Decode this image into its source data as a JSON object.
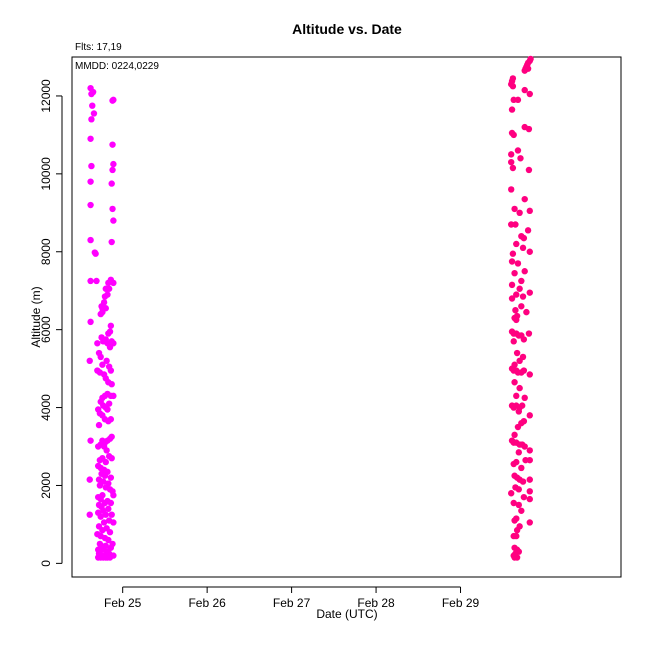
{
  "chart_data": {
    "type": "scatter",
    "title": "Altitude  vs. Date",
    "xlabel": "Date (UTC)",
    "ylabel": "Altitude (m)",
    "annotations": [
      "Flts: 17,19",
      "MMDD: 0224,0229"
    ],
    "x_ticks": [
      "Feb 25",
      "Feb 26",
      "Feb 27",
      "Feb 28",
      "Feb 29"
    ],
    "y_ticks": [
      0,
      2000,
      4000,
      6000,
      8000,
      10000,
      12000
    ],
    "xlim_days": [
      24.4,
      30.9
    ],
    "ylim": [
      -350,
      13000
    ],
    "grid": false,
    "legend": "none",
    "series": [
      {
        "color": "#ff00ff",
        "x_day_range": [
          24.6,
          24.9
        ],
        "points": [
          [
            24.62,
            12200
          ],
          [
            24.63,
            12050
          ],
          [
            24.65,
            12100
          ],
          [
            24.64,
            11750
          ],
          [
            24.66,
            11550
          ],
          [
            24.63,
            11400
          ],
          [
            24.62,
            10900
          ],
          [
            24.63,
            10200
          ],
          [
            24.62,
            9800
          ],
          [
            24.62,
            9200
          ],
          [
            24.62,
            8300
          ],
          [
            24.67,
            7980
          ],
          [
            24.68,
            7950
          ],
          [
            24.62,
            7250
          ],
          [
            24.69,
            7250
          ],
          [
            24.62,
            6200
          ],
          [
            24.61,
            5200
          ],
          [
            24.62,
            3150
          ],
          [
            24.61,
            2150
          ],
          [
            24.61,
            1250
          ],
          [
            24.89,
            11900
          ],
          [
            24.88,
            11880
          ],
          [
            24.88,
            10750
          ],
          [
            24.89,
            10250
          ],
          [
            24.88,
            10100
          ],
          [
            24.87,
            9750
          ],
          [
            24.88,
            9100
          ],
          [
            24.89,
            8800
          ],
          [
            24.87,
            8250
          ],
          [
            24.89,
            7200
          ],
          [
            24.86,
            7280
          ],
          [
            24.84,
            7050
          ],
          [
            24.83,
            7200
          ],
          [
            24.82,
            6900
          ],
          [
            24.8,
            7050
          ],
          [
            24.79,
            6850
          ],
          [
            24.78,
            6700
          ],
          [
            24.76,
            6550
          ],
          [
            24.75,
            6600
          ],
          [
            24.74,
            6400
          ],
          [
            24.76,
            6450
          ],
          [
            24.8,
            6550
          ],
          [
            24.86,
            6100
          ],
          [
            24.85,
            5950
          ],
          [
            24.83,
            5900
          ],
          [
            24.8,
            5750
          ],
          [
            24.82,
            5650
          ],
          [
            24.85,
            5550
          ],
          [
            24.87,
            5700
          ],
          [
            24.89,
            5650
          ],
          [
            24.75,
            5800
          ],
          [
            24.77,
            5700
          ],
          [
            24.7,
            5650
          ],
          [
            24.72,
            5400
          ],
          [
            24.74,
            5300
          ],
          [
            24.81,
            5200
          ],
          [
            24.84,
            5050
          ],
          [
            24.86,
            4950
          ],
          [
            24.76,
            5100
          ],
          [
            24.73,
            4900
          ],
          [
            24.7,
            4950
          ],
          [
            24.78,
            4850
          ],
          [
            24.8,
            4750
          ],
          [
            24.83,
            4650
          ],
          [
            24.87,
            4600
          ],
          [
            24.89,
            4300
          ],
          [
            24.86,
            4300
          ],
          [
            24.82,
            4350
          ],
          [
            24.79,
            4300
          ],
          [
            24.76,
            4250
          ],
          [
            24.74,
            4150
          ],
          [
            24.77,
            4050
          ],
          [
            24.8,
            4000
          ],
          [
            24.84,
            4100
          ],
          [
            24.82,
            3950
          ],
          [
            24.71,
            3950
          ],
          [
            24.73,
            3850
          ],
          [
            24.76,
            3800
          ],
          [
            24.79,
            3700
          ],
          [
            24.86,
            3700
          ],
          [
            24.83,
            3650
          ],
          [
            24.72,
            3550
          ],
          [
            24.85,
            3200
          ],
          [
            24.87,
            3250
          ],
          [
            24.82,
            3150
          ],
          [
            24.79,
            3100
          ],
          [
            24.76,
            3150
          ],
          [
            24.74,
            3050
          ],
          [
            24.71,
            3000
          ],
          [
            24.78,
            3000
          ],
          [
            24.81,
            2900
          ],
          [
            24.84,
            2750
          ],
          [
            24.87,
            2700
          ],
          [
            24.76,
            2700
          ],
          [
            24.73,
            2650
          ],
          [
            24.8,
            2600
          ],
          [
            24.71,
            2500
          ],
          [
            24.74,
            2450
          ],
          [
            24.78,
            2400
          ],
          [
            24.82,
            2350
          ],
          [
            24.75,
            2300
          ],
          [
            24.79,
            2250
          ],
          [
            24.86,
            2200
          ],
          [
            24.72,
            2150
          ],
          [
            24.77,
            2100
          ],
          [
            24.83,
            2050
          ],
          [
            24.73,
            2000
          ],
          [
            24.8,
            1950
          ],
          [
            24.85,
            1900
          ],
          [
            24.88,
            1850
          ],
          [
            24.89,
            1750
          ],
          [
            24.76,
            1750
          ],
          [
            24.71,
            1700
          ],
          [
            24.74,
            1650
          ],
          [
            24.82,
            1600
          ],
          [
            24.79,
            1550
          ],
          [
            24.86,
            1550
          ],
          [
            24.72,
            1500
          ],
          [
            24.75,
            1450
          ],
          [
            24.83,
            1400
          ],
          [
            24.77,
            1350
          ],
          [
            24.71,
            1300
          ],
          [
            24.8,
            1250
          ],
          [
            24.87,
            1250
          ],
          [
            24.74,
            1200
          ],
          [
            24.84,
            1100
          ],
          [
            24.89,
            1050
          ],
          [
            24.78,
            1050
          ],
          [
            24.72,
            950
          ],
          [
            24.81,
            900
          ],
          [
            24.76,
            850
          ],
          [
            24.85,
            800
          ],
          [
            24.7,
            750
          ],
          [
            24.74,
            700
          ],
          [
            24.79,
            650
          ],
          [
            24.83,
            600
          ],
          [
            24.88,
            500
          ],
          [
            24.73,
            500
          ],
          [
            24.75,
            450
          ],
          [
            24.8,
            450
          ],
          [
            24.86,
            400
          ],
          [
            24.71,
            350
          ],
          [
            24.77,
            350
          ],
          [
            24.82,
            300
          ],
          [
            24.72,
            250
          ],
          [
            24.75,
            200
          ],
          [
            24.79,
            200
          ],
          [
            24.84,
            250
          ],
          [
            24.89,
            200
          ],
          [
            24.71,
            150
          ],
          [
            24.74,
            150
          ],
          [
            24.77,
            150
          ],
          [
            24.8,
            150
          ],
          [
            24.82,
            150
          ],
          [
            24.85,
            150
          ]
        ]
      },
      {
        "color": "#ff0080",
        "x_day_range": [
          29.55,
          29.85
        ],
        "points": [
          [
            29.83,
            12950
          ],
          [
            29.82,
            12900
          ],
          [
            29.8,
            12850
          ],
          [
            29.79,
            12800
          ],
          [
            29.78,
            12750
          ],
          [
            29.77,
            12700
          ],
          [
            29.8,
            12700
          ],
          [
            29.76,
            12650
          ],
          [
            29.62,
            12450
          ],
          [
            29.61,
            12380
          ],
          [
            29.6,
            12300
          ],
          [
            29.62,
            12250
          ],
          [
            29.76,
            12150
          ],
          [
            29.82,
            12050
          ],
          [
            29.63,
            11900
          ],
          [
            29.68,
            11900
          ],
          [
            29.61,
            11650
          ],
          [
            29.76,
            11200
          ],
          [
            29.81,
            11150
          ],
          [
            29.61,
            11050
          ],
          [
            29.63,
            11000
          ],
          [
            29.68,
            10600
          ],
          [
            29.6,
            10500
          ],
          [
            29.71,
            10400
          ],
          [
            29.6,
            10300
          ],
          [
            29.62,
            10150
          ],
          [
            29.81,
            10100
          ],
          [
            29.6,
            9600
          ],
          [
            29.76,
            9350
          ],
          [
            29.64,
            9100
          ],
          [
            29.82,
            9050
          ],
          [
            29.7,
            9000
          ],
          [
            29.65,
            8700
          ],
          [
            29.6,
            8700
          ],
          [
            29.8,
            8550
          ],
          [
            29.72,
            8400
          ],
          [
            29.75,
            8350
          ],
          [
            29.66,
            8200
          ],
          [
            29.74,
            8100
          ],
          [
            29.82,
            8000
          ],
          [
            29.62,
            7950
          ],
          [
            29.61,
            7750
          ],
          [
            29.68,
            7700
          ],
          [
            29.76,
            7500
          ],
          [
            29.64,
            7450
          ],
          [
            29.72,
            7250
          ],
          [
            29.61,
            7150
          ],
          [
            29.7,
            7050
          ],
          [
            29.82,
            6950
          ],
          [
            29.66,
            6900
          ],
          [
            29.74,
            6850
          ],
          [
            29.61,
            6800
          ],
          [
            29.72,
            6600
          ],
          [
            29.65,
            6500
          ],
          [
            29.78,
            6450
          ],
          [
            29.67,
            6350
          ],
          [
            29.64,
            6300
          ],
          [
            29.66,
            6250
          ],
          [
            29.61,
            5950
          ],
          [
            29.63,
            5900
          ],
          [
            29.66,
            5900
          ],
          [
            29.69,
            5850
          ],
          [
            29.72,
            5850
          ],
          [
            29.81,
            5900
          ],
          [
            29.75,
            5750
          ],
          [
            29.63,
            5700
          ],
          [
            29.67,
            5400
          ],
          [
            29.74,
            5300
          ],
          [
            29.7,
            5200
          ],
          [
            29.64,
            5100
          ],
          [
            29.61,
            5000
          ],
          [
            29.63,
            4950
          ],
          [
            29.66,
            4950
          ],
          [
            29.68,
            4900
          ],
          [
            29.72,
            4900
          ],
          [
            29.75,
            4950
          ],
          [
            29.82,
            4850
          ],
          [
            29.64,
            4650
          ],
          [
            29.7,
            4500
          ],
          [
            29.66,
            4300
          ],
          [
            29.76,
            4250
          ],
          [
            29.61,
            4050
          ],
          [
            29.63,
            4000
          ],
          [
            29.66,
            4050
          ],
          [
            29.7,
            4000
          ],
          [
            29.73,
            4050
          ],
          [
            29.69,
            3900
          ],
          [
            29.82,
            3800
          ],
          [
            29.75,
            3650
          ],
          [
            29.72,
            3600
          ],
          [
            29.68,
            3500
          ],
          [
            29.64,
            3300
          ],
          [
            29.61,
            3150
          ],
          [
            29.63,
            3100
          ],
          [
            29.66,
            3100
          ],
          [
            29.7,
            3050
          ],
          [
            29.73,
            3050
          ],
          [
            29.76,
            3000
          ],
          [
            29.82,
            2900
          ],
          [
            29.69,
            2850
          ],
          [
            29.77,
            2650
          ],
          [
            29.82,
            2650
          ],
          [
            29.66,
            2600
          ],
          [
            29.63,
            2550
          ],
          [
            29.72,
            2450
          ],
          [
            29.64,
            2250
          ],
          [
            29.67,
            2200
          ],
          [
            29.7,
            2150
          ],
          [
            29.74,
            2100
          ],
          [
            29.82,
            2150
          ],
          [
            29.65,
            1950
          ],
          [
            29.69,
            1900
          ],
          [
            29.82,
            1850
          ],
          [
            29.6,
            1800
          ],
          [
            29.75,
            1700
          ],
          [
            29.82,
            1650
          ],
          [
            29.63,
            1550
          ],
          [
            29.69,
            1500
          ],
          [
            29.72,
            1350
          ],
          [
            29.66,
            1150
          ],
          [
            29.64,
            1100
          ],
          [
            29.82,
            1050
          ],
          [
            29.7,
            950
          ],
          [
            29.67,
            850
          ],
          [
            29.63,
            700
          ],
          [
            29.66,
            700
          ],
          [
            29.64,
            400
          ],
          [
            29.67,
            350
          ],
          [
            29.69,
            300
          ],
          [
            29.65,
            250
          ],
          [
            29.63,
            200
          ],
          [
            29.67,
            150
          ],
          [
            29.64,
            150
          ]
        ]
      }
    ]
  }
}
